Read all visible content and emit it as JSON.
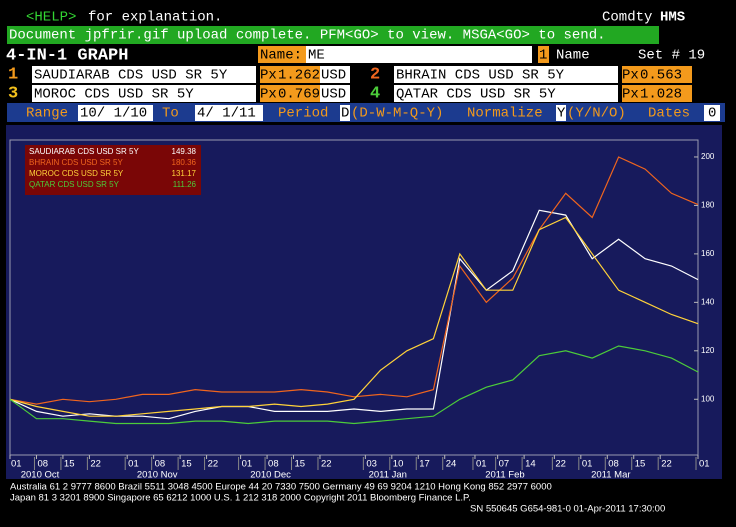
{
  "header": {
    "help_key": "<HELP>",
    "help_text": "for explanation.",
    "product": "Comdty",
    "function": "HMS"
  },
  "message": "Document jpfrir.gif upload complete. PFM<GO> to view. MSGA<GO> to send.",
  "title": "4-IN-1 GRAPH",
  "name_label": "Name:",
  "name_value": "ME",
  "set_key": "1",
  "set_name_label": "Name",
  "set_label": "Set # 19",
  "securities": [
    {
      "number": "1",
      "ticker": "SAUDIARAB CDS USD SR 5Y",
      "px_label": "Px",
      "price": 1.262,
      "currency": "USD"
    },
    {
      "number": "2",
      "ticker": "BHRAIN CDS USD SR 5Y",
      "px_label": "Px",
      "price": 0.563
    },
    {
      "number": "3",
      "ticker": "MOROC CDS USD SR 5Y",
      "px_label": "Px",
      "price": 0.769,
      "currency": "USD"
    },
    {
      "number": "4",
      "ticker": "QATAR CDS USD SR 5Y",
      "px_label": "Px",
      "price": 1.028
    }
  ],
  "controls": {
    "range_label": "Range",
    "from": "10/ 1/10",
    "to_label": "To",
    "to": "4/ 1/11",
    "period_label": "Period",
    "period": "D",
    "period_options": "(D-W-M-Q-Y)",
    "normalize_label": "Normalize",
    "normalize": "Y",
    "normalize_options": "(Y/N/O)",
    "dates_label": "Dates",
    "dates": "0"
  },
  "chart_data": {
    "type": "line",
    "x": [
      "2010-10-01",
      "2010-10-08",
      "2010-10-15",
      "2010-10-22",
      "2010-10-29",
      "2010-11-05",
      "2010-11-12",
      "2010-11-19",
      "2010-11-26",
      "2010-12-03",
      "2010-12-10",
      "2010-12-17",
      "2010-12-24",
      "2010-12-31",
      "2011-01-07",
      "2011-01-14",
      "2011-01-21",
      "2011-01-28",
      "2011-02-04",
      "2011-02-11",
      "2011-02-18",
      "2011-02-25",
      "2011-03-04",
      "2011-03-11",
      "2011-03-18",
      "2011-03-25",
      "2011-04-01"
    ],
    "series": [
      {
        "name": "SAUDIARAB CDS USD SR 5Y",
        "color": "#ffffff",
        "values": [
          100,
          95,
          93,
          94,
          93,
          93,
          92,
          95,
          97,
          97,
          95,
          95,
          95,
          96,
          95,
          96,
          96,
          158,
          145,
          153,
          178,
          176,
          158,
          166,
          158,
          155,
          149.38
        ]
      },
      {
        "name": "BHRAIN CDS USD SR 5Y",
        "color": "#f0651e",
        "values": [
          100,
          98,
          100,
          99,
          100,
          102,
          102,
          104,
          103,
          103,
          103,
          104,
          103,
          101,
          102,
          101,
          104,
          155,
          140,
          150,
          170,
          185,
          175,
          200,
          195,
          185,
          180.36
        ]
      },
      {
        "name": "MOROC CDS USD SR 5Y",
        "color": "#ffd23a",
        "values": [
          100,
          97,
          95,
          93,
          93,
          94,
          95,
          96,
          97,
          97,
          98,
          97,
          98,
          100,
          112,
          120,
          125,
          160,
          145,
          145,
          170,
          175,
          160,
          145,
          140,
          135,
          131.17
        ]
      },
      {
        "name": "QATAR CDS USD SR 5Y",
        "color": "#4ccc3a",
        "values": [
          100,
          92,
          92,
          91,
          90,
          90,
          90,
          91,
          91,
          90,
          91,
          91,
          91,
          90,
          91,
          92,
          93,
          100,
          105,
          108,
          118,
          120,
          117,
          122,
          120,
          117,
          111.26
        ]
      }
    ],
    "ylim": [
      77,
      207
    ],
    "yticks": [
      100,
      120,
      140,
      160,
      180,
      200
    ],
    "xlim": [
      "2010-10-01",
      "2011-04-01"
    ],
    "xticks": [
      {
        "value": "2010-10-01",
        "label": "01"
      },
      {
        "value": "2010-10-08",
        "label": "08"
      },
      {
        "value": "2010-10-15",
        "label": "15"
      },
      {
        "value": "2010-10-22",
        "label": "22"
      },
      {
        "value": "2010-11-01",
        "label": "01"
      },
      {
        "value": "2010-11-08",
        "label": "08"
      },
      {
        "value": "2010-11-15",
        "label": "15"
      },
      {
        "value": "2010-11-22",
        "label": "22"
      },
      {
        "value": "2010-12-01",
        "label": "01"
      },
      {
        "value": "2010-12-08",
        "label": "08"
      },
      {
        "value": "2010-12-15",
        "label": "15"
      },
      {
        "value": "2010-12-22",
        "label": "22"
      },
      {
        "value": "2011-01-03",
        "label": "03"
      },
      {
        "value": "2011-01-10",
        "label": "10"
      },
      {
        "value": "2011-01-17",
        "label": "17"
      },
      {
        "value": "2011-01-24",
        "label": "24"
      },
      {
        "value": "2011-02-01",
        "label": "01"
      },
      {
        "value": "2011-02-07",
        "label": "07"
      },
      {
        "value": "2011-02-14",
        "label": "14"
      },
      {
        "value": "2011-02-22",
        "label": "22"
      },
      {
        "value": "2011-03-01",
        "label": "01"
      },
      {
        "value": "2011-03-08",
        "label": "08"
      },
      {
        "value": "2011-03-15",
        "label": "15"
      },
      {
        "value": "2011-03-22",
        "label": "22"
      },
      {
        "value": "2011-04-01",
        "label": "01"
      }
    ],
    "month_labels": [
      {
        "value": "2010-10-01",
        "label": "2010 Oct"
      },
      {
        "value": "2010-11-01",
        "label": "2010 Nov"
      },
      {
        "value": "2010-12-01",
        "label": "2010 Dec"
      },
      {
        "value": "2011-01-01",
        "label": "2011 Jan"
      },
      {
        "value": "2011-02-01",
        "label": "2011 Feb"
      },
      {
        "value": "2011-03-01",
        "label": "2011 Mar"
      }
    ],
    "grid": false,
    "legend": "upper left"
  },
  "footer": [
    "Australia 61 2 9777 8600 Brazil 5511 3048 4500 Europe 44 20 7330 7500 Germany 49 69 9204 1210 Hong Kong 852 2977 6000",
    "Japan 81 3 3201 8900       Singapore 65 6212 1000       U.S. 1 212 318 2000          Copyright 2011 Bloomberg Finance L.P.",
    "SN 550645 G654-981-0 01-Apr-2011 17:30:00"
  ]
}
